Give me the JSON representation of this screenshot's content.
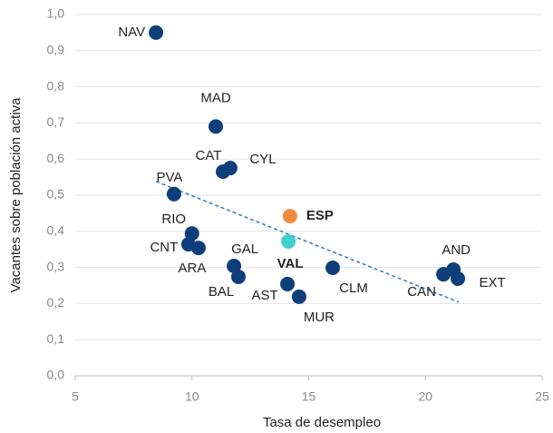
{
  "chart_data": {
    "type": "scatter",
    "xlabel": "Tasa de desempleo",
    "ylabel": "Vacantes sobre población activa",
    "color": "#0e3f7a",
    "labels": [
      "NAV",
      "MAD",
      "CAT",
      "CYL",
      "PVA",
      "RIO",
      "CNT",
      "ARA",
      "GAL",
      "BAL",
      "AST",
      "MUR",
      "VAL",
      "ESP",
      "CLM",
      "AND",
      "CAN",
      "EXT"
    ],
    "x": [
      8.46,
      11.02,
      11.33,
      11.64,
      9.23,
      10.0,
      9.85,
      10.28,
      11.8,
      11.99,
      14.09,
      14.59,
      14.13,
      14.2,
      16.03,
      21.2,
      20.77,
      21.39
    ],
    "y": [
      0.95,
      0.69,
      0.565,
      0.575,
      0.503,
      0.394,
      0.364,
      0.354,
      0.304,
      0.274,
      0.254,
      0.219,
      0.372,
      0.442,
      0.299,
      0.294,
      0.281,
      0.269
    ],
    "colors": [
      "#0e3f7a",
      "#0e3f7a",
      "#0e3f7a",
      "#0e3f7a",
      "#0e3f7a",
      "#0e3f7a",
      "#0e3f7a",
      "#0e3f7a",
      "#0e3f7a",
      "#0e3f7a",
      "#0e3f7a",
      "#0e3f7a",
      "#3fd0d0",
      "#f28c3c",
      "#0e3f7a",
      "#0e3f7a",
      "#0e3f7a",
      "#0e3f7a"
    ],
    "trendline": {
      "x": [
        8.46,
        21.43
      ],
      "y": [
        0.538,
        0.204
      ],
      "color": "#2a7fc4"
    },
    "xlim": [
      5,
      25
    ],
    "xticks": [
      5,
      10,
      15,
      20,
      25
    ],
    "ylim": [
      0,
      1
    ],
    "yticks": [
      {
        "value": 0,
        "label": "0,0"
      },
      {
        "value": 0.1,
        "label": "0,1"
      },
      {
        "value": 0.2,
        "label": "0,2"
      },
      {
        "value": 0.3,
        "label": "0,3"
      },
      {
        "value": 0.4,
        "label": "0,4"
      },
      {
        "value": 0.5,
        "label": "0,5"
      },
      {
        "value": 0.6,
        "label": "0,6"
      },
      {
        "value": 0.7,
        "label": "0,7"
      },
      {
        "value": 0.8,
        "label": "0,8"
      },
      {
        "value": 0.9,
        "label": "0,9"
      },
      {
        "value": 1,
        "label": "1,0"
      }
    ],
    "grid": true
  }
}
